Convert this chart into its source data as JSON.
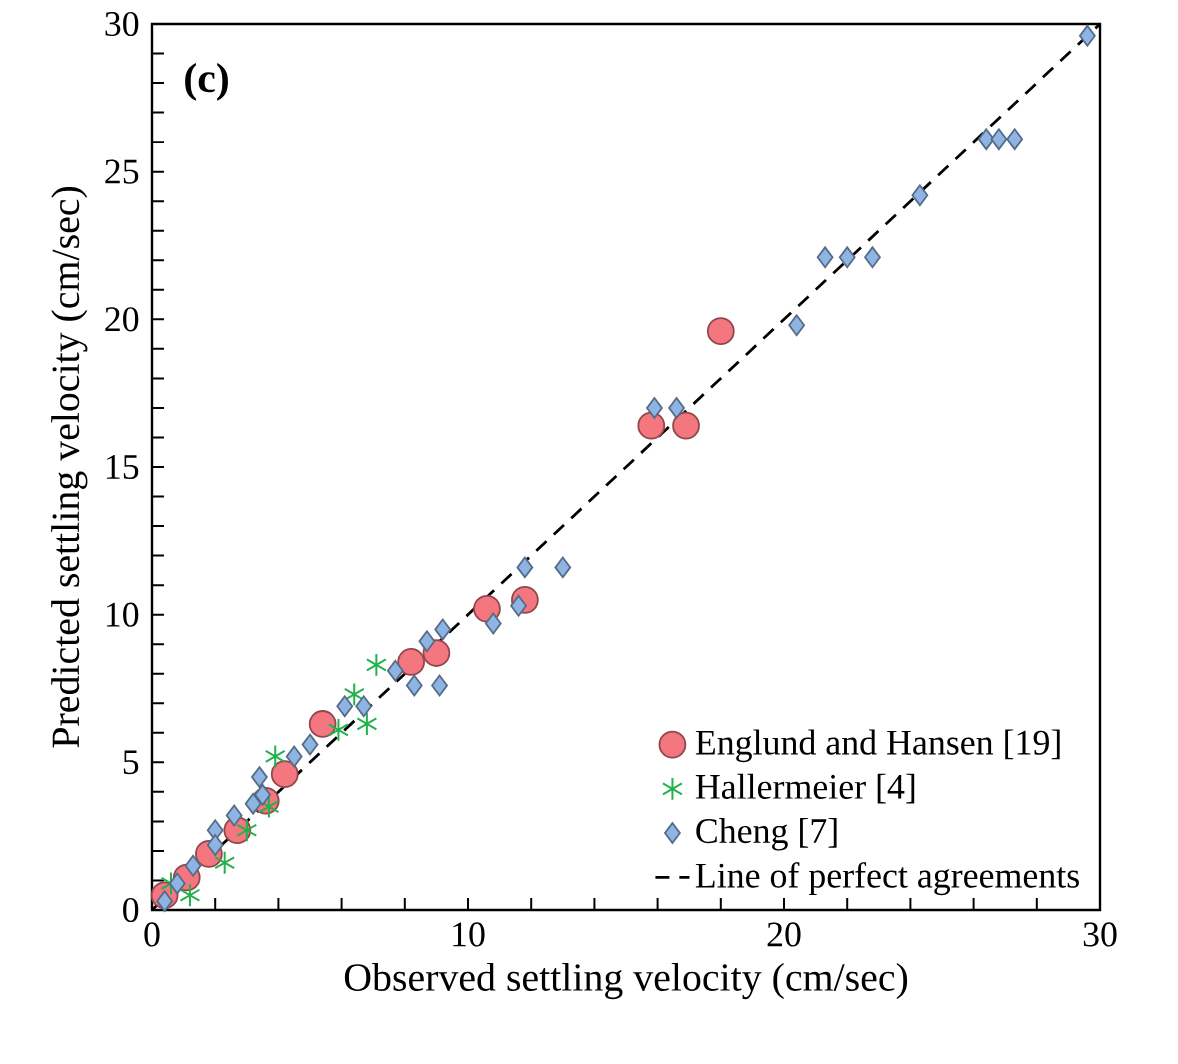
{
  "chart_data": {
    "type": "scatter",
    "title": "**(c)**",
    "xlabel": "Observed settling velocity (cm/sec)",
    "ylabel": "Predicted settling velocity (cm/sec)",
    "xlim": [
      0,
      30
    ],
    "ylim": [
      0,
      30
    ],
    "xticks": [
      0,
      10,
      20,
      30
    ],
    "yticks": [
      0,
      5,
      10,
      15,
      20,
      25,
      30
    ],
    "grid": false,
    "legend": "bottom right",
    "series": [
      {
        "name": "Englund and Hansen [19]",
        "color": "#f4777f",
        "marker": "circle",
        "x": [
          18.0,
          15.8,
          16.9,
          10.6,
          11.8,
          8.2,
          9.0,
          5.4,
          4.2,
          3.6,
          2.7,
          1.8,
          1.1,
          0.4
        ],
        "values": [
          19.6,
          16.4,
          16.4,
          10.2,
          10.5,
          8.4,
          8.7,
          6.3,
          4.6,
          3.7,
          2.7,
          1.9,
          1.1,
          0.5
        ]
      },
      {
        "name": "Hallermeier [4]",
        "color": "#22b14c",
        "marker": "cross",
        "x": [
          7.1,
          6.4,
          6.8,
          5.9,
          3.9,
          3.7,
          3.0,
          2.3,
          0.6,
          1.2
        ],
        "values": [
          8.3,
          7.3,
          6.3,
          6.1,
          5.2,
          3.5,
          2.7,
          1.6,
          0.9,
          0.5
        ]
      },
      {
        "name": "Cheng [7]",
        "color": "#8eb4e3",
        "marker": "diamond",
        "x": [
          9.2,
          8.7,
          7.7,
          8.3,
          9.1,
          6.1,
          6.7,
          5.0,
          4.5,
          3.4,
          3.5,
          3.2,
          2.6,
          2.0,
          2.0,
          1.3,
          0.8,
          0.4,
          11.8,
          13.0,
          10.8,
          11.6,
          15.9,
          16.6,
          20.4,
          21.3,
          22.0,
          22.8,
          24.3,
          26.4,
          26.8,
          27.3,
          29.6
        ],
        "values": [
          9.5,
          9.1,
          8.1,
          7.6,
          7.6,
          6.9,
          6.9,
          5.6,
          5.2,
          4.5,
          3.9,
          3.6,
          3.2,
          2.7,
          2.2,
          1.5,
          0.9,
          0.3,
          11.6,
          11.6,
          9.7,
          10.3,
          17.0,
          17.0,
          19.8,
          22.1,
          22.1,
          22.1,
          24.2,
          26.1,
          26.1,
          26.1,
          29.6
        ]
      },
      {
        "name": "Line of perfect agreements",
        "type": "line",
        "color": "#000000",
        "marker": "none",
        "line_style": "dashed",
        "x": [
          0,
          30
        ],
        "values": [
          0,
          30
        ]
      }
    ]
  }
}
